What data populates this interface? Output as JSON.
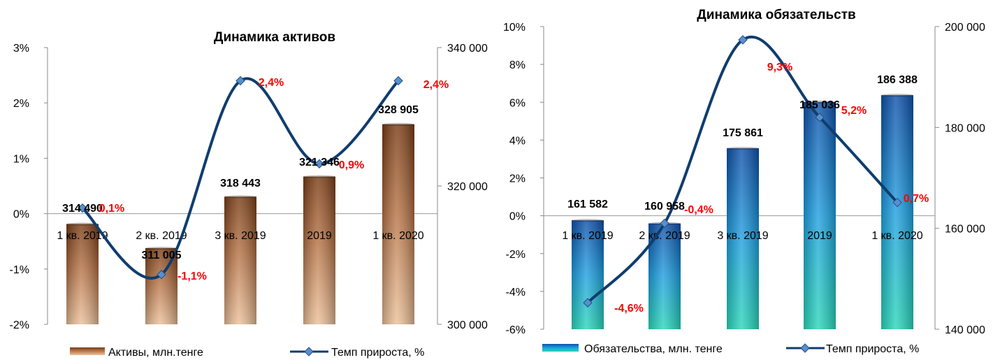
{
  "chart_data": [
    {
      "type": "bar",
      "title": "Динамика активов",
      "categories": [
        "1 кв. 2019",
        "2 кв. 2019",
        "3 кв. 2019",
        "2019",
        "1 кв. 2020"
      ],
      "series": [
        {
          "name": "Активы, млн.тенге",
          "axis": "right",
          "values": [
            314490,
            311005,
            318443,
            321346,
            328905
          ],
          "labels": [
            "314 490",
            "311 005",
            "318 443",
            "321 346",
            "328 905"
          ]
        },
        {
          "name": "Темп прироста, %",
          "type": "line",
          "axis": "left",
          "values": [
            0.1,
            -1.1,
            2.4,
            0.9,
            2.4
          ],
          "labels": [
            "0,1%",
            "-1,1%",
            "2,4%",
            "0,9%",
            "2,4%"
          ]
        }
      ],
      "left_axis": {
        "min": -2,
        "max": 3,
        "ticks": [
          "-2%",
          "-1%",
          "0%",
          "1%",
          "2%",
          "3%"
        ]
      },
      "right_axis": {
        "min": 300000,
        "max": 340000,
        "ticks": [
          "300 000",
          "320 000",
          "340 000"
        ]
      },
      "grid": false,
      "legend": "bottom",
      "colors": {
        "bar_top": "#7a3d16",
        "bar_mid": "#b77447",
        "bar_bottom": "#ecc19a",
        "line": "#0f3d6e",
        "marker": "#5b8fc9",
        "growth_label": "#ff0000"
      }
    },
    {
      "type": "bar",
      "title": "Динамика обязательств",
      "categories": [
        "1 кв. 2019",
        "2 кв. 2019",
        "3 кв. 2019",
        "2019",
        "1 кв. 2020"
      ],
      "series": [
        {
          "name": "Обязательства, млн. тенге",
          "axis": "right",
          "values": [
            161582,
            160958,
            175861,
            185036,
            186388
          ],
          "labels": [
            "161 582",
            "160 958",
            "175 861",
            "185 036",
            "186 388"
          ]
        },
        {
          "name": "Темп прироста, %",
          "type": "line",
          "axis": "left",
          "values": [
            -4.6,
            -0.4,
            9.3,
            5.2,
            0.7
          ],
          "labels": [
            "-4,6%",
            "-0,4%",
            "9,3%",
            "5,2%",
            "0,7%"
          ]
        }
      ],
      "left_axis": {
        "min": -6,
        "max": 10,
        "ticks": [
          "-6%",
          "-4%",
          "-2%",
          "0%",
          "2%",
          "4%",
          "6%",
          "8%",
          "10%"
        ]
      },
      "right_axis": {
        "min": 140000,
        "max": 200000,
        "ticks": [
          "140 000",
          "160 000",
          "180 000",
          "200 000"
        ]
      },
      "grid": false,
      "legend": "bottom",
      "colors": {
        "bar_top": "#0d4fa8",
        "bar_mid": "#1f9fe0",
        "bar_bottom": "#29d6b8",
        "line": "#0f3d6e",
        "marker": "#5b8fc9",
        "growth_label": "#ff0000"
      }
    }
  ]
}
